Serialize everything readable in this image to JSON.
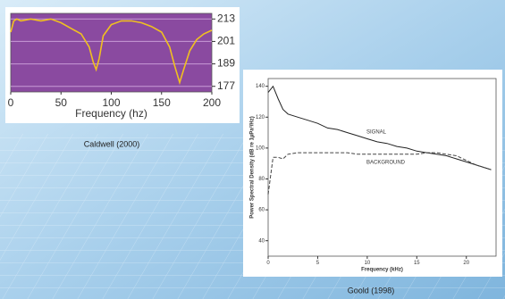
{
  "chart_data": [
    {
      "type": "line",
      "caption": "Caldwell (2000)",
      "xlabel": "Frequency (hz)",
      "x": [
        0,
        3,
        6,
        10,
        20,
        30,
        40,
        50,
        60,
        70,
        78,
        82,
        85,
        88,
        92,
        100,
        110,
        120,
        130,
        140,
        150,
        158,
        163,
        168,
        172,
        178,
        185,
        192,
        200
      ],
      "values": [
        206,
        212,
        213,
        212,
        213,
        212,
        213,
        211,
        208,
        205,
        198,
        190,
        186,
        192,
        204,
        210,
        212,
        212,
        211,
        209,
        206,
        198,
        188,
        179,
        186,
        196,
        202,
        205,
        207
      ],
      "color": "#f0c020",
      "background": "#8a4aa0",
      "grid": true,
      "y_axis_side": "right",
      "xlim": [
        0,
        200
      ],
      "xticks": [
        0,
        50,
        100,
        150,
        200
      ],
      "ylim": [
        174,
        216
      ],
      "yticks": [
        177,
        189,
        201,
        213
      ]
    },
    {
      "type": "line",
      "caption": "Goold (1998)",
      "xlabel": "Frequency (kHz)",
      "ylabel": "Power Spectral Density (dB re 1µPa²/Hz)",
      "x": [
        0,
        0.5,
        1,
        1.5,
        2,
        3,
        4,
        5,
        6,
        7,
        8,
        9,
        10,
        11,
        12,
        13,
        14,
        15,
        16,
        17,
        18,
        19,
        20,
        21,
        22,
        22.5
      ],
      "series": [
        {
          "name": "SIGNAL",
          "color": "#222222",
          "dash": false,
          "values": [
            136,
            140,
            132,
            125,
            122,
            120,
            118,
            116,
            113,
            112,
            110,
            108,
            106,
            104,
            103,
            101,
            100,
            98,
            97,
            96,
            95,
            93,
            91,
            89,
            87,
            86
          ]
        },
        {
          "name": "BACKGROUND",
          "color": "#444444",
          "dash": true,
          "values": [
            70,
            94,
            94,
            93,
            96,
            97,
            97,
            97,
            97,
            97,
            97,
            96,
            96,
            96,
            96,
            96,
            96,
            96,
            97,
            97,
            96,
            95,
            92,
            89,
            87,
            86
          ]
        }
      ],
      "background": "#ffffff",
      "grid": false,
      "y_axis_side": "left",
      "xlim": [
        0,
        23
      ],
      "xticks": [
        0,
        5,
        10,
        15,
        20
      ],
      "ylim": [
        30,
        145
      ],
      "yticks": [
        40,
        60,
        80,
        100,
        120,
        140
      ]
    }
  ]
}
